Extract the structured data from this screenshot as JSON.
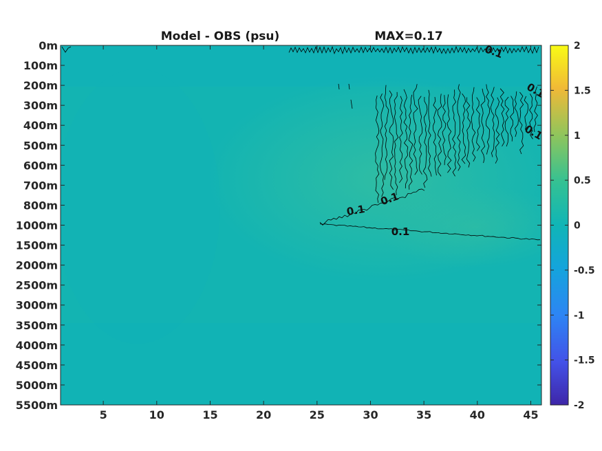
{
  "chart_data": {
    "type": "heatmap",
    "title": "Model - OBS (psu)",
    "max_label": "MAX=0.17",
    "x_ticks": [
      5,
      10,
      15,
      20,
      25,
      30,
      35,
      40,
      45
    ],
    "xlim": [
      1,
      46
    ],
    "y_ticks": [
      "0m",
      "100m",
      "200m",
      "300m",
      "400m",
      "500m",
      "600m",
      "700m",
      "800m",
      "1000m",
      "1500m",
      "2000m",
      "2500m",
      "3000m",
      "3500m",
      "4000m",
      "4500m",
      "5000m",
      "5500m"
    ],
    "colorbar": {
      "ticks": [
        2,
        1.5,
        1,
        0.5,
        0,
        -0.5,
        -1,
        -1.5,
        -2
      ],
      "range": [
        -2,
        2
      ],
      "colormap": "parula"
    },
    "contour_level": 0.1,
    "contour_labels": [
      "0.1",
      "0.1",
      "0.1",
      "0.1",
      "0.1",
      "0.1"
    ],
    "colors": {
      "field_base": "#12b3b3",
      "field_warm": "#2dbba4",
      "contour": "#000000"
    }
  }
}
